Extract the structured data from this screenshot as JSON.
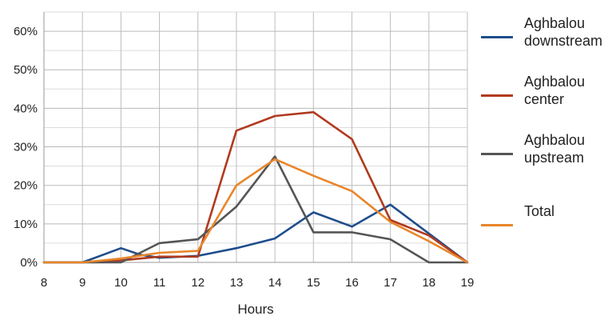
{
  "chart_data": {
    "type": "line",
    "xlabel": "Hours",
    "ylabel": "",
    "x": [
      8,
      9,
      10,
      11,
      12,
      13,
      14,
      15,
      16,
      17,
      18,
      19
    ],
    "xlim": [
      8,
      19
    ],
    "ylim": [
      0,
      0.65
    ],
    "y_ticks": [
      0,
      0.1,
      0.2,
      0.3,
      0.4,
      0.5,
      0.6
    ],
    "y_tick_labels": [
      "0%",
      "10%",
      "20%",
      "30%",
      "40%",
      "50%",
      "60%"
    ],
    "x_tick_labels": [
      "8",
      "9",
      "10",
      "11",
      "12",
      "13",
      "14",
      "15",
      "16",
      "17",
      "18",
      "19"
    ],
    "grid": true,
    "legend_position": "right",
    "series": [
      {
        "name": "Aghbalou\ndownstream",
        "color": "#1f4e8c",
        "points": [
          [
            8,
            0
          ],
          [
            9,
            0
          ],
          [
            10,
            0.037
          ],
          [
            10.5,
            0.02
          ],
          [
            11,
            0.012
          ],
          [
            12,
            0.017
          ],
          [
            13,
            0.037
          ],
          [
            14,
            0.062
          ],
          [
            15,
            0.13
          ],
          [
            16,
            0.093
          ],
          [
            17,
            0.15
          ],
          [
            18,
            0.075
          ],
          [
            19,
            0
          ]
        ]
      },
      {
        "name": "Aghbalou\ncenter",
        "color": "#b03a1e",
        "points": [
          [
            8,
            0
          ],
          [
            9,
            0
          ],
          [
            10,
            0.005
          ],
          [
            11,
            0.015
          ],
          [
            12,
            0.015
          ],
          [
            13,
            0.342
          ],
          [
            14,
            0.38
          ],
          [
            15,
            0.39
          ],
          [
            16,
            0.32
          ],
          [
            17,
            0.11
          ],
          [
            18,
            0.07
          ],
          [
            19,
            0
          ]
        ]
      },
      {
        "name": "Aghbalou\nupstream",
        "color": "#555555",
        "points": [
          [
            8,
            0
          ],
          [
            9,
            0
          ],
          [
            10,
            0
          ],
          [
            11,
            0.05
          ],
          [
            12,
            0.06
          ],
          [
            13,
            0.145
          ],
          [
            14,
            0.275
          ],
          [
            15,
            0.078
          ],
          [
            16,
            0.078
          ],
          [
            17,
            0.06
          ],
          [
            18,
            0
          ],
          [
            19,
            0
          ]
        ]
      },
      {
        "name": "Total",
        "color": "#e8862a",
        "points": [
          [
            8,
            0
          ],
          [
            9,
            0
          ],
          [
            10,
            0.01
          ],
          [
            11,
            0.025
          ],
          [
            12,
            0.03
          ],
          [
            13,
            0.2
          ],
          [
            14,
            0.268
          ],
          [
            15,
            0.225
          ],
          [
            16,
            0.185
          ],
          [
            17,
            0.105
          ],
          [
            18,
            0.055
          ],
          [
            19,
            0
          ]
        ]
      }
    ]
  }
}
